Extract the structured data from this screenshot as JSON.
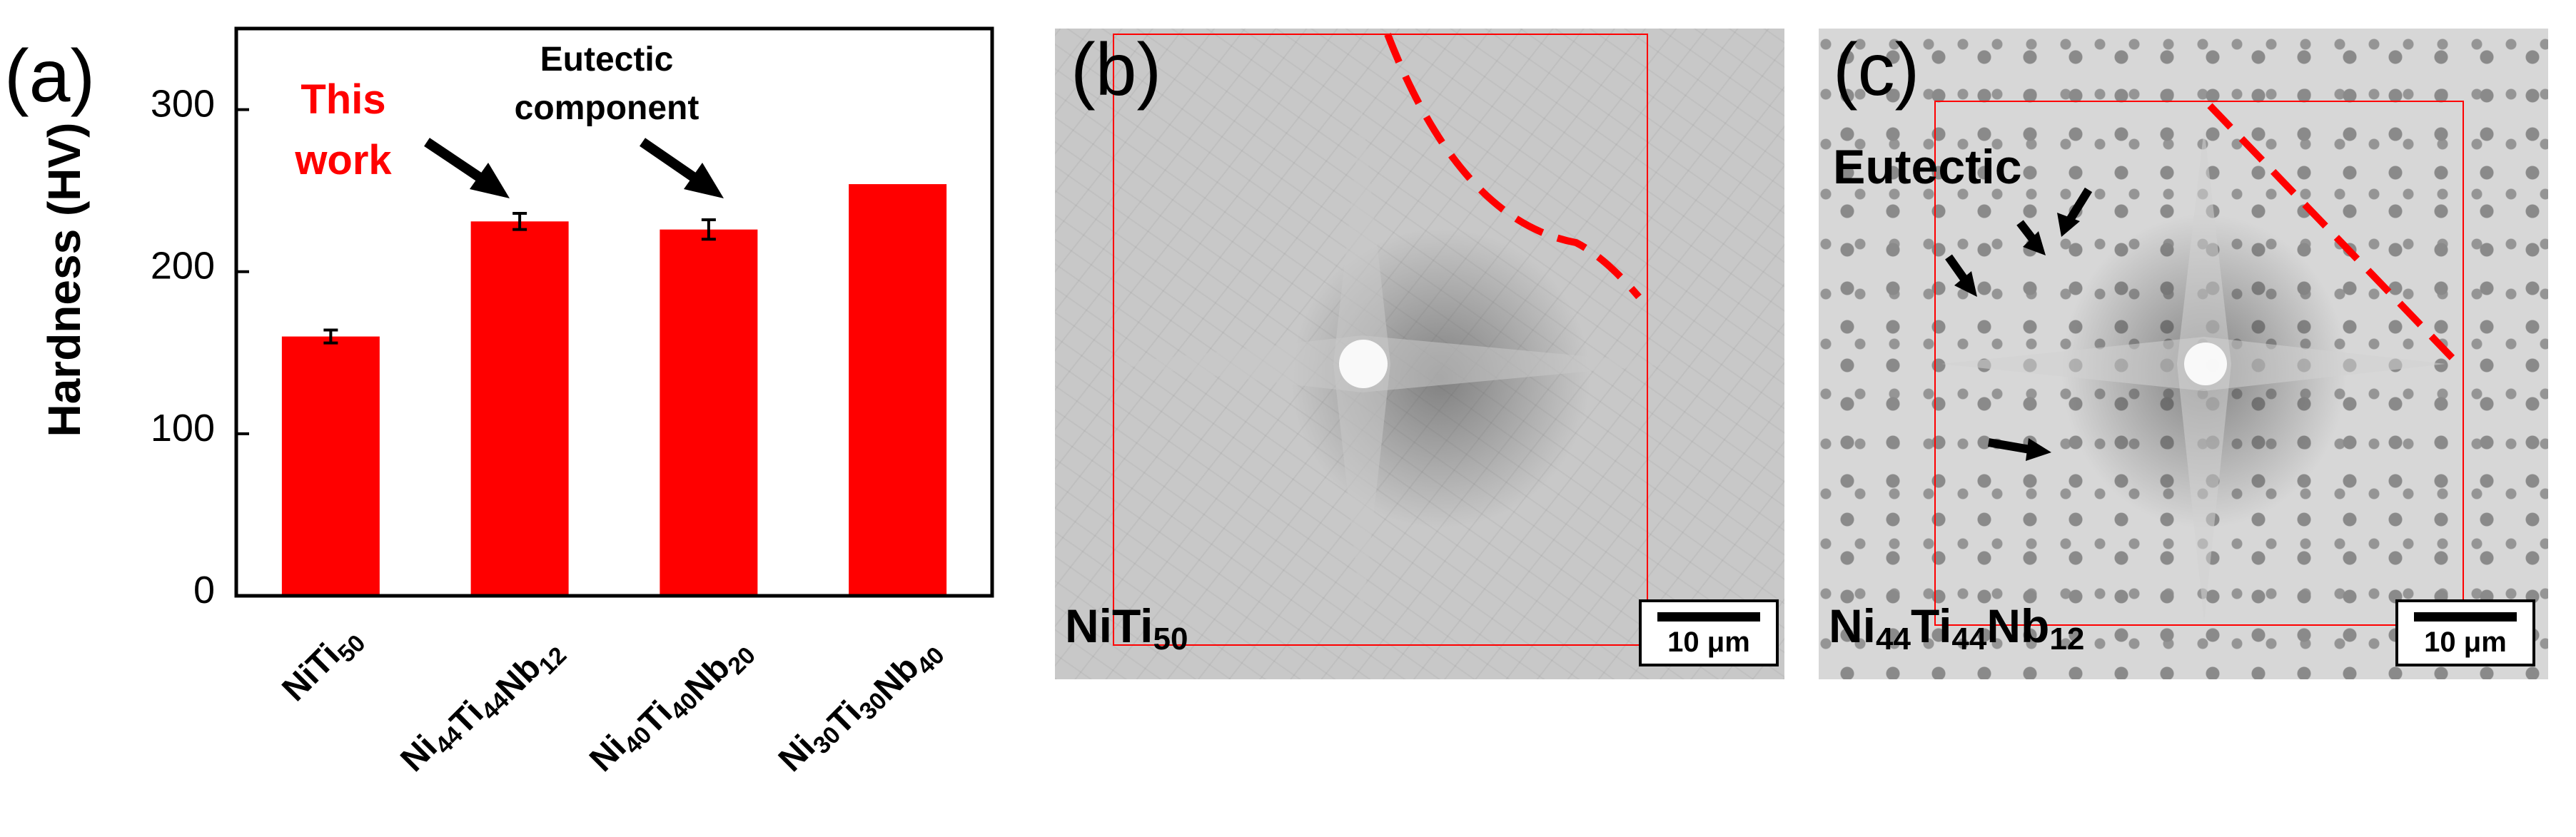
{
  "chart_data": {
    "type": "bar",
    "panel_label": "(a)",
    "ylabel": "Hardness (HV)",
    "ylim": [
      0,
      350
    ],
    "yticks": [
      "0",
      "100",
      "200",
      "300"
    ],
    "categories": [
      {
        "base": "NiTi",
        "subs": [
          "50"
        ],
        "parts": [
          [
            "NiTi",
            "50"
          ]
        ]
      },
      {
        "base": "Ni44Ti44Nb12",
        "parts": [
          [
            "Ni",
            "44"
          ],
          [
            "Ti",
            "44"
          ],
          [
            "Nb",
            "12"
          ]
        ]
      },
      {
        "base": "Ni40Ti40Nb20",
        "parts": [
          [
            "Ni",
            "40"
          ],
          [
            "Ti",
            "40"
          ],
          [
            "Nb",
            "20"
          ]
        ]
      },
      {
        "base": "Ni30Ti30Nb40",
        "parts": [
          [
            "Ni",
            "30"
          ],
          [
            "Ti",
            "30"
          ],
          [
            "Nb",
            "40"
          ]
        ]
      }
    ],
    "values": [
      160,
      231,
      226,
      254
    ],
    "errors": [
      4,
      5,
      6,
      null
    ],
    "bar_color": "#ff0000",
    "annotations": {
      "this_work_line1": "This",
      "this_work_line2": "work",
      "eutectic_line1": "Eutectic",
      "eutectic_line2": "component"
    },
    "annotation_color": "#ff0000"
  },
  "images": {
    "b": {
      "panel_label": "(b)",
      "caption_parts": [
        [
          "NiTi",
          "50"
        ]
      ],
      "scale_bar": "10 μm"
    },
    "c": {
      "panel_label": "(c)",
      "caption_parts": [
        [
          "Ni",
          "44"
        ],
        [
          "Ti",
          "44"
        ],
        [
          "Nb",
          "12"
        ]
      ],
      "label": "Eutectic",
      "scale_bar": "10 μm"
    },
    "indent_box_color": "#ff0000",
    "dashed_line_color": "#ff0000"
  }
}
